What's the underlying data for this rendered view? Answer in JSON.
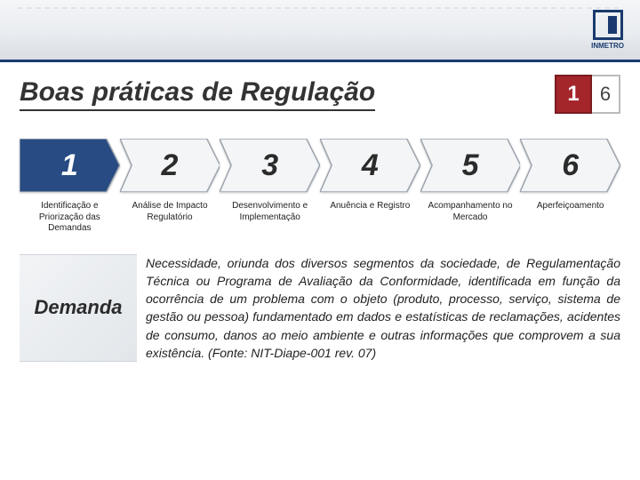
{
  "header": {
    "brand": "INMETRO"
  },
  "title": "Boas práticas de Regulação",
  "page_badge": {
    "current": "1",
    "total": "6"
  },
  "steps": {
    "chevron_active_fill": "#274b82",
    "chevron_active_text": "#ffffff",
    "chevron_inactive_fill": "#f3f5f7",
    "chevron_inactive_text": "#2b2b2b",
    "chevron_stroke": "#9aa3ad",
    "items": [
      {
        "num": "1",
        "label": "Identificação e Priorização das Demandas",
        "active": true
      },
      {
        "num": "2",
        "label": "Análise de Impacto Regulatório",
        "active": false
      },
      {
        "num": "3",
        "label": "Desenvolvimento e Implementação",
        "active": false
      },
      {
        "num": "4",
        "label": "Anuência e Registro",
        "active": false
      },
      {
        "num": "5",
        "label": "Acompanhamento no Mercado",
        "active": false
      },
      {
        "num": "6",
        "label": "Aperfeiçoamento",
        "active": false
      }
    ]
  },
  "section": {
    "side_label": "Demanda",
    "text": "Necessidade, oriunda dos diversos segmentos da sociedade, de Regulamentação Técnica ou Programa de Avaliação da Conformidade, identificada em função da ocorrência de um problema com o objeto (produto, processo, serviço, sistema de gestão ou pessoa) fundamentado em dados e estatísticas de reclamações, acidentes de consumo, danos ao meio ambiente e outras informações que comprovem a sua existência. (Fonte: NIT-Diape-001 rev. 07)"
  }
}
